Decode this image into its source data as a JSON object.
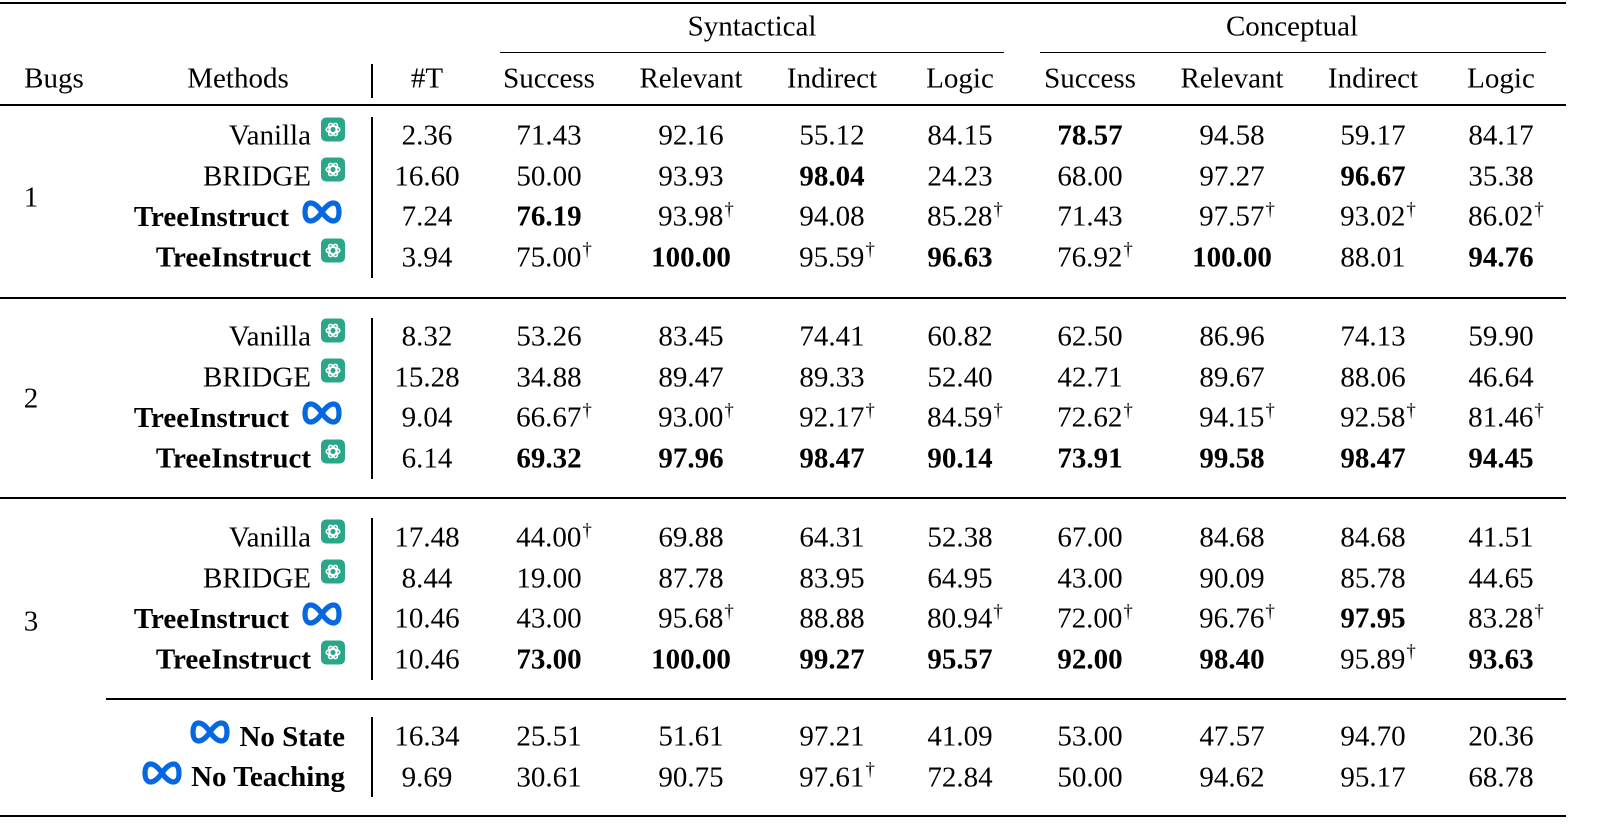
{
  "headers": {
    "group_syntactical": "Syntactical",
    "group_conceptual": "Conceptual",
    "bugs": "Bugs",
    "methods": "Methods",
    "t": "#T",
    "metrics": [
      "Success",
      "Relevant",
      "Indirect",
      "Logic",
      "Success",
      "Relevant",
      "Indirect",
      "Logic"
    ]
  },
  "icons": {
    "gpt": "openai-logo-icon",
    "meta": "meta-logo-icon",
    "gpt_color": "#2aa68a",
    "meta_color": "#0668e1"
  },
  "groups": [
    {
      "bug": "1",
      "rows": [
        {
          "method": "Vanilla",
          "bold": false,
          "icon": "gpt",
          "t": "2.36",
          "cells": [
            {
              "v": "71.43"
            },
            {
              "v": "92.16"
            },
            {
              "v": "55.12"
            },
            {
              "v": "84.15"
            },
            {
              "v": "78.57",
              "b": true
            },
            {
              "v": "94.58"
            },
            {
              "v": "59.17"
            },
            {
              "v": "84.17"
            }
          ]
        },
        {
          "method": "BRIDGE",
          "bold": false,
          "icon": "gpt",
          "t": "16.60",
          "cells": [
            {
              "v": "50.00"
            },
            {
              "v": "93.93"
            },
            {
              "v": "98.04",
              "b": true
            },
            {
              "v": "24.23"
            },
            {
              "v": "68.00"
            },
            {
              "v": "97.27"
            },
            {
              "v": "96.67",
              "b": true
            },
            {
              "v": "35.38"
            }
          ]
        },
        {
          "method": "TreeInstruct",
          "bold": true,
          "icon": "meta",
          "t": "7.24",
          "cells": [
            {
              "v": "76.19",
              "b": true
            },
            {
              "v": "93.98",
              "d": true
            },
            {
              "v": "94.08"
            },
            {
              "v": "85.28",
              "d": true
            },
            {
              "v": "71.43"
            },
            {
              "v": "97.57",
              "d": true
            },
            {
              "v": "93.02",
              "d": true
            },
            {
              "v": "86.02",
              "d": true
            }
          ]
        },
        {
          "method": "TreeInstruct",
          "bold": true,
          "icon": "gpt",
          "t": "3.94",
          "cells": [
            {
              "v": "75.00",
              "d": true
            },
            {
              "v": "100.00",
              "b": true
            },
            {
              "v": "95.59",
              "d": true
            },
            {
              "v": "96.63",
              "b": true
            },
            {
              "v": "76.92",
              "d": true
            },
            {
              "v": "100.00",
              "b": true
            },
            {
              "v": "88.01"
            },
            {
              "v": "94.76",
              "b": true
            }
          ]
        }
      ]
    },
    {
      "bug": "2",
      "rows": [
        {
          "method": "Vanilla",
          "bold": false,
          "icon": "gpt",
          "t": "8.32",
          "cells": [
            {
              "v": "53.26"
            },
            {
              "v": "83.45"
            },
            {
              "v": "74.41"
            },
            {
              "v": "60.82"
            },
            {
              "v": "62.50"
            },
            {
              "v": "86.96"
            },
            {
              "v": "74.13"
            },
            {
              "v": "59.90"
            }
          ]
        },
        {
          "method": "BRIDGE",
          "bold": false,
          "icon": "gpt",
          "t": "15.28",
          "cells": [
            {
              "v": "34.88"
            },
            {
              "v": "89.47"
            },
            {
              "v": "89.33"
            },
            {
              "v": "52.40"
            },
            {
              "v": "42.71"
            },
            {
              "v": "89.67"
            },
            {
              "v": "88.06"
            },
            {
              "v": "46.64"
            }
          ]
        },
        {
          "method": "TreeInstruct",
          "bold": true,
          "icon": "meta",
          "t": "9.04",
          "cells": [
            {
              "v": "66.67",
              "d": true
            },
            {
              "v": "93.00",
              "d": true
            },
            {
              "v": "92.17",
              "d": true
            },
            {
              "v": "84.59",
              "d": true
            },
            {
              "v": "72.62",
              "d": true
            },
            {
              "v": "94.15",
              "d": true
            },
            {
              "v": "92.58",
              "d": true
            },
            {
              "v": "81.46",
              "d": true
            }
          ]
        },
        {
          "method": "TreeInstruct",
          "bold": true,
          "icon": "gpt",
          "t": "6.14",
          "cells": [
            {
              "v": "69.32",
              "b": true
            },
            {
              "v": "97.96",
              "b": true
            },
            {
              "v": "98.47",
              "b": true
            },
            {
              "v": "90.14",
              "b": true
            },
            {
              "v": "73.91",
              "b": true
            },
            {
              "v": "99.58",
              "b": true
            },
            {
              "v": "98.47",
              "b": true
            },
            {
              "v": "94.45",
              "b": true
            }
          ]
        }
      ]
    },
    {
      "bug": "3",
      "rows": [
        {
          "method": "Vanilla",
          "bold": false,
          "icon": "gpt",
          "t": "17.48",
          "cells": [
            {
              "v": "44.00",
              "d": true
            },
            {
              "v": "69.88"
            },
            {
              "v": "64.31"
            },
            {
              "v": "52.38"
            },
            {
              "v": "67.00"
            },
            {
              "v": "84.68"
            },
            {
              "v": "84.68"
            },
            {
              "v": "41.51"
            }
          ]
        },
        {
          "method": "BRIDGE",
          "bold": false,
          "icon": "gpt",
          "t": "8.44",
          "cells": [
            {
              "v": "19.00"
            },
            {
              "v": "87.78"
            },
            {
              "v": "83.95"
            },
            {
              "v": "64.95"
            },
            {
              "v": "43.00"
            },
            {
              "v": "90.09"
            },
            {
              "v": "85.78"
            },
            {
              "v": "44.65"
            }
          ]
        },
        {
          "method": "TreeInstruct",
          "bold": true,
          "icon": "meta",
          "t": "10.46",
          "cells": [
            {
              "v": "43.00"
            },
            {
              "v": "95.68",
              "d": true
            },
            {
              "v": "88.88"
            },
            {
              "v": "80.94",
              "d": true
            },
            {
              "v": "72.00",
              "d": true
            },
            {
              "v": "96.76",
              "d": true
            },
            {
              "v": "97.95",
              "b": true
            },
            {
              "v": "83.28",
              "d": true
            }
          ]
        },
        {
          "method": "TreeInstruct",
          "bold": true,
          "icon": "gpt",
          "t": "10.46",
          "cells": [
            {
              "v": "73.00",
              "b": true
            },
            {
              "v": "100.00",
              "b": true
            },
            {
              "v": "99.27",
              "b": true
            },
            {
              "v": "95.57",
              "b": true
            },
            {
              "v": "92.00",
              "b": true
            },
            {
              "v": "98.40",
              "b": true
            },
            {
              "v": "95.89",
              "d": true
            },
            {
              "v": "93.63",
              "b": true
            }
          ]
        }
      ]
    },
    {
      "bug": "",
      "rows": [
        {
          "method": "No State",
          "bold": true,
          "icon": "meta-left",
          "t": "16.34",
          "cells": [
            {
              "v": "25.51"
            },
            {
              "v": "51.61"
            },
            {
              "v": "97.21"
            },
            {
              "v": "41.09"
            },
            {
              "v": "53.00"
            },
            {
              "v": "47.57"
            },
            {
              "v": "94.70"
            },
            {
              "v": "20.36"
            }
          ]
        },
        {
          "method": "No Teaching",
          "bold": true,
          "icon": "meta-left",
          "t": "9.69",
          "cells": [
            {
              "v": "30.61"
            },
            {
              "v": "90.75"
            },
            {
              "v": "97.61",
              "d": true
            },
            {
              "v": "72.84"
            },
            {
              "v": "50.00"
            },
            {
              "v": "94.62"
            },
            {
              "v": "95.17"
            },
            {
              "v": "68.78"
            }
          ]
        }
      ]
    }
  ],
  "dagger": "†"
}
